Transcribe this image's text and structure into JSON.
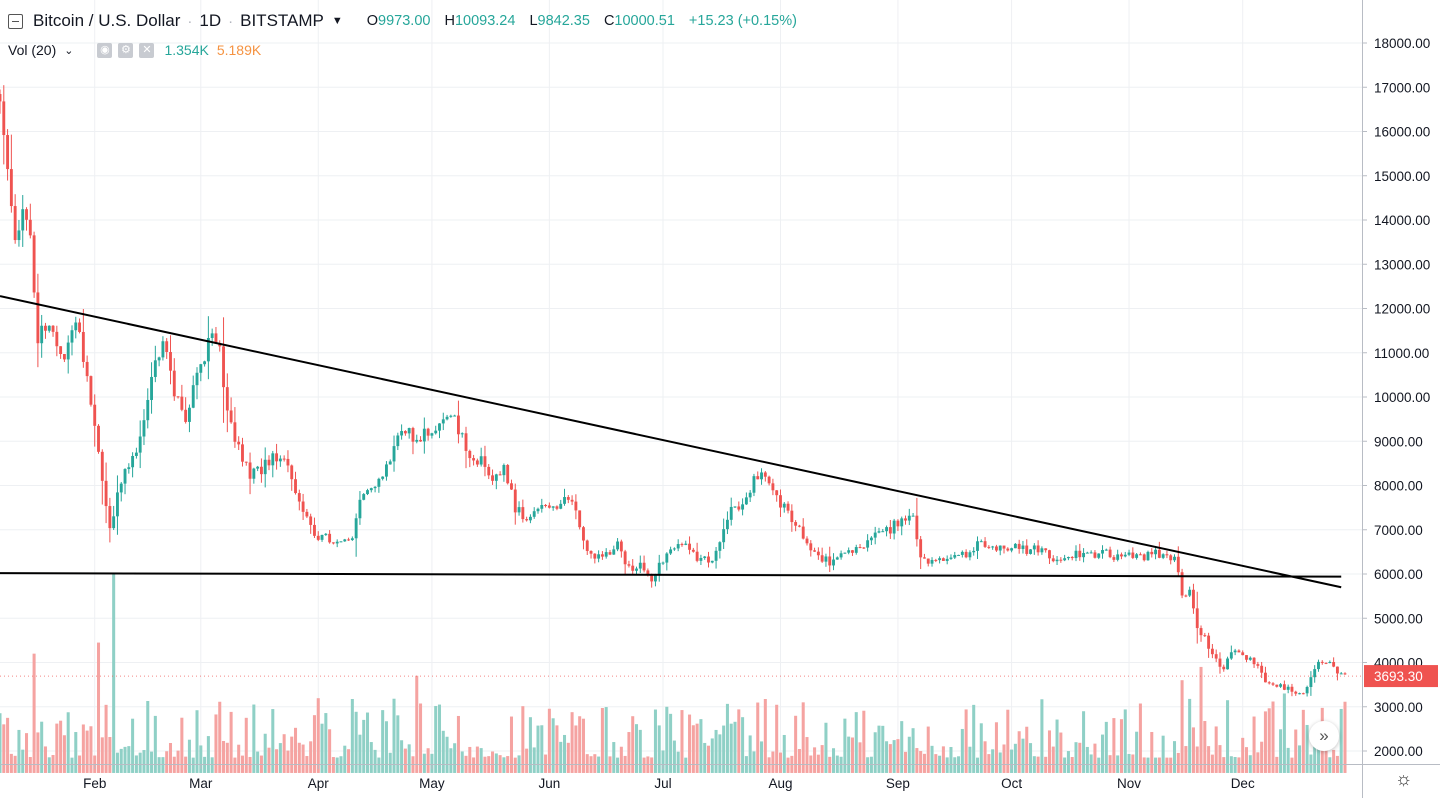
{
  "header": {
    "title": "Bitcoin / U.S. Dollar",
    "sep": "·",
    "interval": "1D",
    "exchange": "BITSTAMP",
    "ohlc": {
      "o_label": "O",
      "o_value": "9973.00",
      "h_label": "H",
      "h_value": "10093.24",
      "l_label": "L",
      "l_value": "9842.35",
      "c_label": "C",
      "c_value": "10000.51",
      "change": "+15.23 (+0.15%)"
    }
  },
  "volume_legend": {
    "label": "Vol (20)",
    "value_a": "1.354K",
    "value_b": "5.189K",
    "icons": [
      "eye-icon",
      "gear-icon",
      "close-icon"
    ]
  },
  "colors": {
    "up": "#26a69a",
    "down": "#ef5350",
    "vol_up": "#8fd0c6",
    "vol_down": "#f5a3a1",
    "grid": "#eef0f3",
    "trendline": "#000000",
    "price_label_bg": "#ef5350"
  },
  "icons": {
    "collapse": "collapse-icon",
    "scroll_right": "double-chevron-right-icon",
    "settings": "gear-icon"
  },
  "chart_data": {
    "type": "candlestick",
    "symbol": "BTCUSD",
    "interval": "1D",
    "y_axis": {
      "scale": "linear",
      "ylim": [
        1820,
        18500
      ],
      "ticks": [
        18000,
        17000,
        16000,
        15000,
        14000,
        13000,
        12000,
        11000,
        10000,
        9000,
        8000,
        7000,
        6000,
        5000,
        4000,
        3000,
        2000
      ],
      "tick_labels": [
        "18000.00",
        "17000.00",
        "16000.00",
        "15000.00",
        "14000.00",
        "13000.00",
        "12000.00",
        "11000.00",
        "10000.00",
        "9000.00",
        "8000.00",
        "7000.00",
        "6000.00",
        "5000.00",
        "4000.00",
        "3000.00",
        "2000.00"
      ]
    },
    "x_axis": {
      "start": "2018-01-07",
      "end": "2018-12-28",
      "ticks": [
        {
          "date": "2018-02-01",
          "label": "Feb"
        },
        {
          "date": "2018-03-01",
          "label": "Mar"
        },
        {
          "date": "2018-04-01",
          "label": "Apr"
        },
        {
          "date": "2018-05-01",
          "label": "May"
        },
        {
          "date": "2018-06-01",
          "label": "Jun"
        },
        {
          "date": "2018-07-01",
          "label": "Jul"
        },
        {
          "date": "2018-08-01",
          "label": "Aug"
        },
        {
          "date": "2018-09-01",
          "label": "Sep"
        },
        {
          "date": "2018-10-01",
          "label": "Oct"
        },
        {
          "date": "2018-11-01",
          "label": "Nov"
        },
        {
          "date": "2018-12-01",
          "label": "Dec"
        }
      ]
    },
    "grid": true,
    "close_path": [
      [
        "2018-01-07",
        16800
      ],
      [
        "2018-01-09",
        14900
      ],
      [
        "2018-01-11",
        13400
      ],
      [
        "2018-01-13",
        14200
      ],
      [
        "2018-01-15",
        13700
      ],
      [
        "2018-01-17",
        11200
      ],
      [
        "2018-01-19",
        11700
      ],
      [
        "2018-01-21",
        11500
      ],
      [
        "2018-01-24",
        11000
      ],
      [
        "2018-01-27",
        11700
      ],
      [
        "2018-01-30",
        10500
      ],
      [
        "2018-02-02",
        8800
      ],
      [
        "2018-02-05",
        7000
      ],
      [
        "2018-02-06",
        7400
      ],
      [
        "2018-02-09",
        8400
      ],
      [
        "2018-02-12",
        8600
      ],
      [
        "2018-02-15",
        9800
      ],
      [
        "2018-02-17",
        11000
      ],
      [
        "2018-02-20",
        11200
      ],
      [
        "2018-02-22",
        10000
      ],
      [
        "2018-02-25",
        9600
      ],
      [
        "2018-02-28",
        10400
      ],
      [
        "2018-03-04",
        11400
      ],
      [
        "2018-03-06",
        11000
      ],
      [
        "2018-03-08",
        9600
      ],
      [
        "2018-03-11",
        8900
      ],
      [
        "2018-03-14",
        8200
      ],
      [
        "2018-03-17",
        8400
      ],
      [
        "2018-03-20",
        8700
      ],
      [
        "2018-03-23",
        8600
      ],
      [
        "2018-03-26",
        7800
      ],
      [
        "2018-03-29",
        7200
      ],
      [
        "2018-04-01",
        6800
      ],
      [
        "2018-04-04",
        6800
      ],
      [
        "2018-04-07",
        6700
      ],
      [
        "2018-04-10",
        6800
      ],
      [
        "2018-04-12",
        7700
      ],
      [
        "2018-04-15",
        8000
      ],
      [
        "2018-04-18",
        8200
      ],
      [
        "2018-04-21",
        8900
      ],
      [
        "2018-04-24",
        9300
      ],
      [
        "2018-04-27",
        9000
      ],
      [
        "2018-04-30",
        9200
      ],
      [
        "2018-05-02",
        9400
      ],
      [
        "2018-05-05",
        9700
      ],
      [
        "2018-05-08",
        9300
      ],
      [
        "2018-05-11",
        8500
      ],
      [
        "2018-05-14",
        8600
      ],
      [
        "2018-05-17",
        8200
      ],
      [
        "2018-05-20",
        8400
      ],
      [
        "2018-05-23",
        7500
      ],
      [
        "2018-05-26",
        7300
      ],
      [
        "2018-05-29",
        7400
      ],
      [
        "2018-06-01",
        7500
      ],
      [
        "2018-06-04",
        7600
      ],
      [
        "2018-06-07",
        7650
      ],
      [
        "2018-06-10",
        6800
      ],
      [
        "2018-06-13",
        6300
      ],
      [
        "2018-06-16",
        6450
      ],
      [
        "2018-06-19",
        6700
      ],
      [
        "2018-06-22",
        6100
      ],
      [
        "2018-06-25",
        6200
      ],
      [
        "2018-06-28",
        5900
      ],
      [
        "2018-07-01",
        6350
      ],
      [
        "2018-07-04",
        6550
      ],
      [
        "2018-07-07",
        6700
      ],
      [
        "2018-07-10",
        6400
      ],
      [
        "2018-07-13",
        6250
      ],
      [
        "2018-07-16",
        6700
      ],
      [
        "2018-07-19",
        7400
      ],
      [
        "2018-07-22",
        7450
      ],
      [
        "2018-07-25",
        8200
      ],
      [
        "2018-07-28",
        8200
      ],
      [
        "2018-07-31",
        7750
      ],
      [
        "2018-08-03",
        7400
      ],
      [
        "2018-08-06",
        7000
      ],
      [
        "2018-08-09",
        6500
      ],
      [
        "2018-08-12",
        6300
      ],
      [
        "2018-08-15",
        6300
      ],
      [
        "2018-08-18",
        6400
      ],
      [
        "2018-08-21",
        6500
      ],
      [
        "2018-08-24",
        6700
      ],
      [
        "2018-08-27",
        6900
      ],
      [
        "2018-08-30",
        7000
      ],
      [
        "2018-09-02",
        7250
      ],
      [
        "2018-09-05",
        7350
      ],
      [
        "2018-09-07",
        6400
      ],
      [
        "2018-09-10",
        6300
      ],
      [
        "2018-09-13",
        6400
      ],
      [
        "2018-09-16",
        6450
      ],
      [
        "2018-09-19",
        6400
      ],
      [
        "2018-09-22",
        6700
      ],
      [
        "2018-09-25",
        6650
      ],
      [
        "2018-09-28",
        6600
      ],
      [
        "2018-10-01",
        6600
      ],
      [
        "2018-10-04",
        6550
      ],
      [
        "2018-10-07",
        6550
      ],
      [
        "2018-10-10",
        6600
      ],
      [
        "2018-10-12",
        6250
      ],
      [
        "2018-10-15",
        6400
      ],
      [
        "2018-10-18",
        6450
      ],
      [
        "2018-10-21",
        6450
      ],
      [
        "2018-10-24",
        6450
      ],
      [
        "2018-10-27",
        6450
      ],
      [
        "2018-10-30",
        6350
      ],
      [
        "2018-11-02",
        6400
      ],
      [
        "2018-11-05",
        6400
      ],
      [
        "2018-11-08",
        6500
      ],
      [
        "2018-11-11",
        6400
      ],
      [
        "2018-11-13",
        6300
      ],
      [
        "2018-11-15",
        5600
      ],
      [
        "2018-11-17",
        5550
      ],
      [
        "2018-11-19",
        4800
      ],
      [
        "2018-11-21",
        4550
      ],
      [
        "2018-11-24",
        4050
      ],
      [
        "2018-11-26",
        3850
      ],
      [
        "2018-11-28",
        4200
      ],
      [
        "2018-12-01",
        4200
      ],
      [
        "2018-12-04",
        4000
      ],
      [
        "2018-12-07",
        3600
      ],
      [
        "2018-12-10",
        3500
      ],
      [
        "2018-12-13",
        3400
      ],
      [
        "2018-12-15",
        3250
      ],
      [
        "2018-12-17",
        3300
      ],
      [
        "2018-12-19",
        3700
      ],
      [
        "2018-12-21",
        4000
      ],
      [
        "2018-12-24",
        4000
      ],
      [
        "2018-12-26",
        3800
      ],
      [
        "2018-12-28",
        3690
      ]
    ],
    "volume": {
      "ylim": [
        1820,
        18500
      ],
      "base": 1820,
      "typical_range": [
        1820,
        3200
      ],
      "spikes": [
        {
          "date": "2018-01-16",
          "value": 4200,
          "direction": "down"
        },
        {
          "date": "2018-02-02",
          "value": 4450,
          "direction": "down"
        },
        {
          "date": "2018-02-06",
          "value": 6000,
          "direction": "up"
        },
        {
          "date": "2018-04-27",
          "value": 3700,
          "direction": "down"
        },
        {
          "date": "2018-11-15",
          "value": 3600,
          "direction": "down"
        },
        {
          "date": "2018-11-20",
          "value": 3900,
          "direction": "down"
        },
        {
          "date": "2018-12-12",
          "value": 3300,
          "direction": "up"
        }
      ]
    },
    "trendlines": [
      {
        "name": "",
        "from": [
          "2018-01-07",
          12280
        ],
        "to": [
          "2018-12-27",
          5700
        ]
      },
      {
        "name": "",
        "from": [
          "2018-01-07",
          6020
        ],
        "to": [
          "2018-12-27",
          5940
        ]
      }
    ],
    "last_price": 3693.3,
    "last_price_label": "3693.30"
  }
}
